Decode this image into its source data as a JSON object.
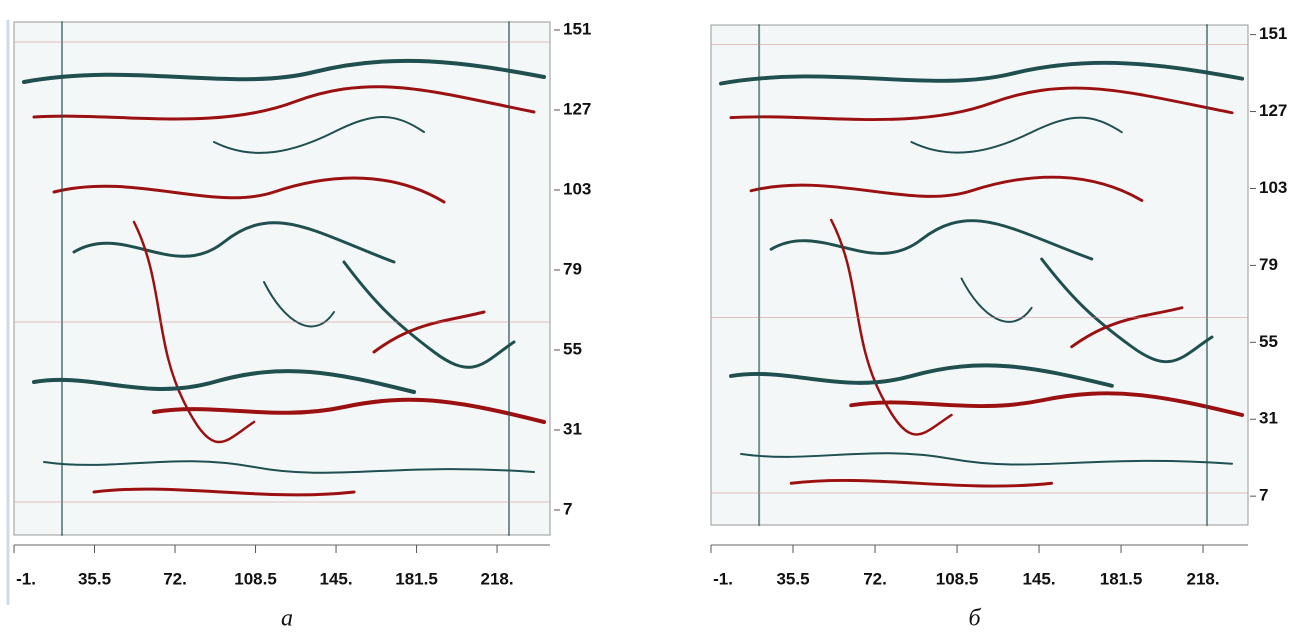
{
  "chart_data": [
    {
      "type": "image",
      "caption": "а",
      "xlim": [
        -1,
        242
      ],
      "ylim": [
        -0.5,
        153.4
      ],
      "xticks": [
        {
          "value": -1,
          "label": "-1."
        },
        35.5,
        {
          "value": 72,
          "label": "72."
        },
        108.5,
        {
          "value": 145,
          "label": "145."
        },
        181.5,
        {
          "value": 218,
          "label": "218."
        }
      ],
      "yticks": [
        7,
        31,
        55,
        79,
        103,
        127,
        151
      ]
    },
    {
      "type": "image",
      "caption": "б",
      "xlim": [
        -1,
        238
      ],
      "ylim": [
        -2,
        154
      ],
      "xticks": [
        {
          "value": -1,
          "label": "-1."
        },
        35.5,
        {
          "value": 72,
          "label": "72."
        },
        108.5,
        {
          "value": 145,
          "label": "145."
        },
        181.5,
        {
          "value": 218,
          "label": "218."
        }
      ],
      "yticks": [
        7,
        31,
        55,
        79,
        103,
        127,
        151
      ]
    }
  ]
}
